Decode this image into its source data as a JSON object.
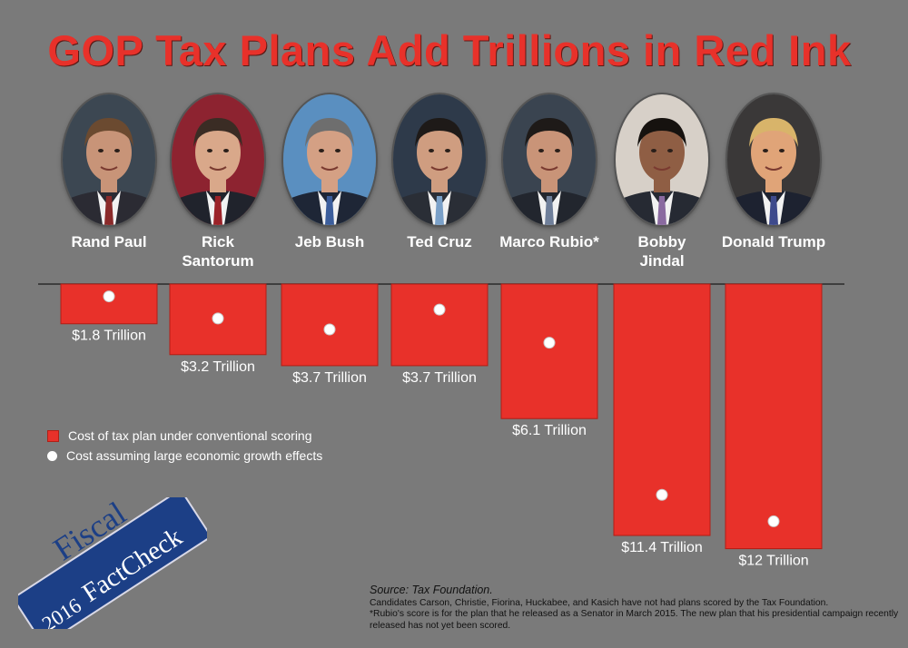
{
  "title": "GOP Tax Plans Add Trillions in Red Ink",
  "candidates": [
    {
      "name": "Rand Paul",
      "skin": "#c89478",
      "hair": "#6b4a30",
      "bg": "#3c4752",
      "suit": "#2b2b33",
      "tie": "#8a2a2a"
    },
    {
      "name": "Rick Santorum",
      "skin": "#d9a88a",
      "hair": "#3a2c24",
      "bg": "#8d2330",
      "suit": "#20232c",
      "tie": "#9b2228"
    },
    {
      "name": "Jeb Bush",
      "skin": "#d4a084",
      "hair": "#6e6e6e",
      "bg": "#5a8fc0",
      "suit": "#1e2636",
      "tie": "#3c5e9c"
    },
    {
      "name": "Ted Cruz",
      "skin": "#cf9d80",
      "hair": "#1e1a18",
      "bg": "#2e3a4a",
      "suit": "#2a2e36",
      "tie": "#7aa0c8"
    },
    {
      "name": "Marco Rubio*",
      "skin": "#c99478",
      "hair": "#1e1a18",
      "bg": "#3a4450",
      "suit": "#22262e",
      "tie": "#6f7f9a"
    },
    {
      "name": "Bobby Jindal",
      "skin": "#8f5e44",
      "hair": "#16120f",
      "bg": "#d7d0c8",
      "suit": "#262a33",
      "tie": "#8a6aa0"
    },
    {
      "name": "Donald Trump",
      "skin": "#e0a478",
      "hair": "#d8b46a",
      "bg": "#3a3838",
      "suit": "#1d2230",
      "tie": "#3e4a8c"
    }
  ],
  "chart_data": {
    "type": "bar",
    "categories": [
      "Rand Paul",
      "Rick Santorum",
      "Jeb Bush",
      "Ted Cruz",
      "Marco Rubio*",
      "Bobby Jindal",
      "Donald Trump"
    ],
    "series": [
      {
        "name": "Cost of tax plan under conventional scoring",
        "values": [
          1.8,
          3.2,
          3.7,
          3.7,
          6.1,
          11.4,
          12.0
        ],
        "color": "#e8312a"
      },
      {
        "name": "Cost assuming large economic growth effects",
        "values": [
          -0.1,
          0.9,
          1.4,
          0.5,
          2.0,
          8.9,
          10.1
        ],
        "color": "#ffffff"
      }
    ],
    "value_labels": [
      "$1.8 Trillion",
      "$3.2 Trillion",
      "$3.7 Trillion",
      "$3.7 Trillion",
      "$6.1 Trillion",
      "$11.4 Trillion",
      "$12 Trillion"
    ],
    "ylim": [
      0,
      12
    ],
    "orientation": "downward"
  },
  "legend": {
    "conventional": "Cost of tax plan under conventional scoring",
    "growth": "Cost assuming large economic growth effects"
  },
  "badge": {
    "year": "2016",
    "line1": "Fiscal",
    "line2": "FactCheck",
    "color": "#1c3f86"
  },
  "source": {
    "label": "Source: Tax Foundation.",
    "note1": "Candidates Carson, Christie, Fiorina, Huckabee, and Kasich have not had plans scored by the Tax Foundation.",
    "note2": "*Rubio's score is for the plan that he released as a Senator in March 2015. The new plan that his presidential campaign recently released has not yet been scored."
  }
}
